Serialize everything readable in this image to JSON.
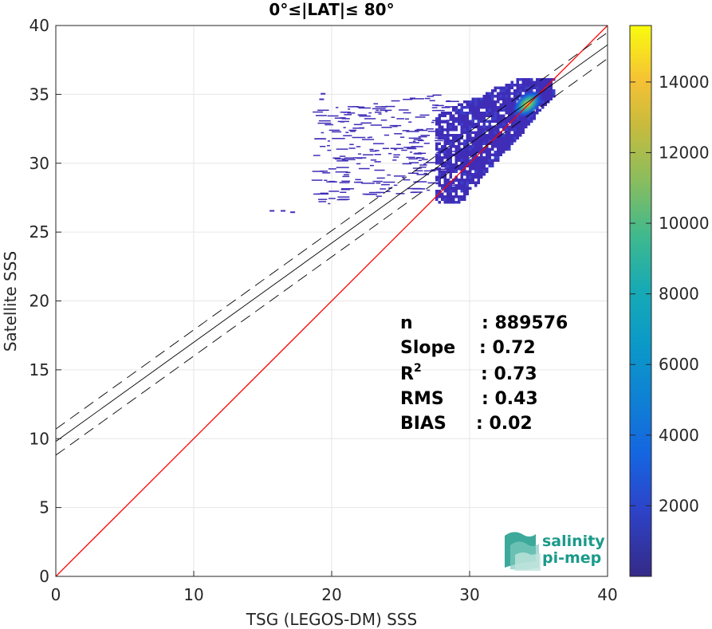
{
  "chart_data": {
    "type": "heatmap",
    "title": "0°≤|LAT|≤ 80°",
    "xlabel": "TSG (LEGOS-DM) SSS",
    "ylabel": "Satellite SSS",
    "xlim": [
      0,
      40
    ],
    "ylim": [
      0,
      40
    ],
    "xticks": [
      "0",
      "10",
      "20",
      "30",
      "40"
    ],
    "yticks": [
      "0",
      "5",
      "10",
      "15",
      "20",
      "25",
      "30",
      "35",
      "40"
    ],
    "grid": true,
    "colorbar": {
      "colormap": "parula",
      "range": [
        0,
        15600
      ],
      "ticks": [
        "2000",
        "4000",
        "6000",
        "8000",
        "10000",
        "12000",
        "14000"
      ]
    },
    "lines": [
      {
        "kind": "identity",
        "color": "#ff0000",
        "style": "solid",
        "points": [
          [
            0,
            0
          ],
          [
            40,
            40
          ]
        ]
      },
      {
        "kind": "regression",
        "color": "#000000",
        "style": "solid",
        "points": [
          [
            0,
            9.8
          ],
          [
            40,
            38.6
          ]
        ]
      },
      {
        "kind": "regression-upper",
        "color": "#000000",
        "style": "dashed",
        "points": [
          [
            0,
            10.7
          ],
          [
            40,
            39.5
          ]
        ]
      },
      {
        "kind": "regression-lower",
        "color": "#000000",
        "style": "dashed",
        "points": [
          [
            0,
            8.8
          ],
          [
            40,
            37.6
          ]
        ]
      }
    ],
    "stats": [
      {
        "label": "n",
        "value": ": 889576"
      },
      {
        "label": "Slope",
        "value": ": 0.72"
      },
      {
        "label": "R",
        "sup": "2",
        "value": ": 0.73"
      },
      {
        "label": "RMS",
        "value": ": 0.43"
      },
      {
        "label": "BIAS",
        "value": ": 0.02"
      }
    ]
  },
  "logo": {
    "line1": "salinity",
    "line2": "pi-mep",
    "colors": [
      "#1b9a8a",
      "#7fcbbf",
      "#bfe3dc"
    ]
  }
}
